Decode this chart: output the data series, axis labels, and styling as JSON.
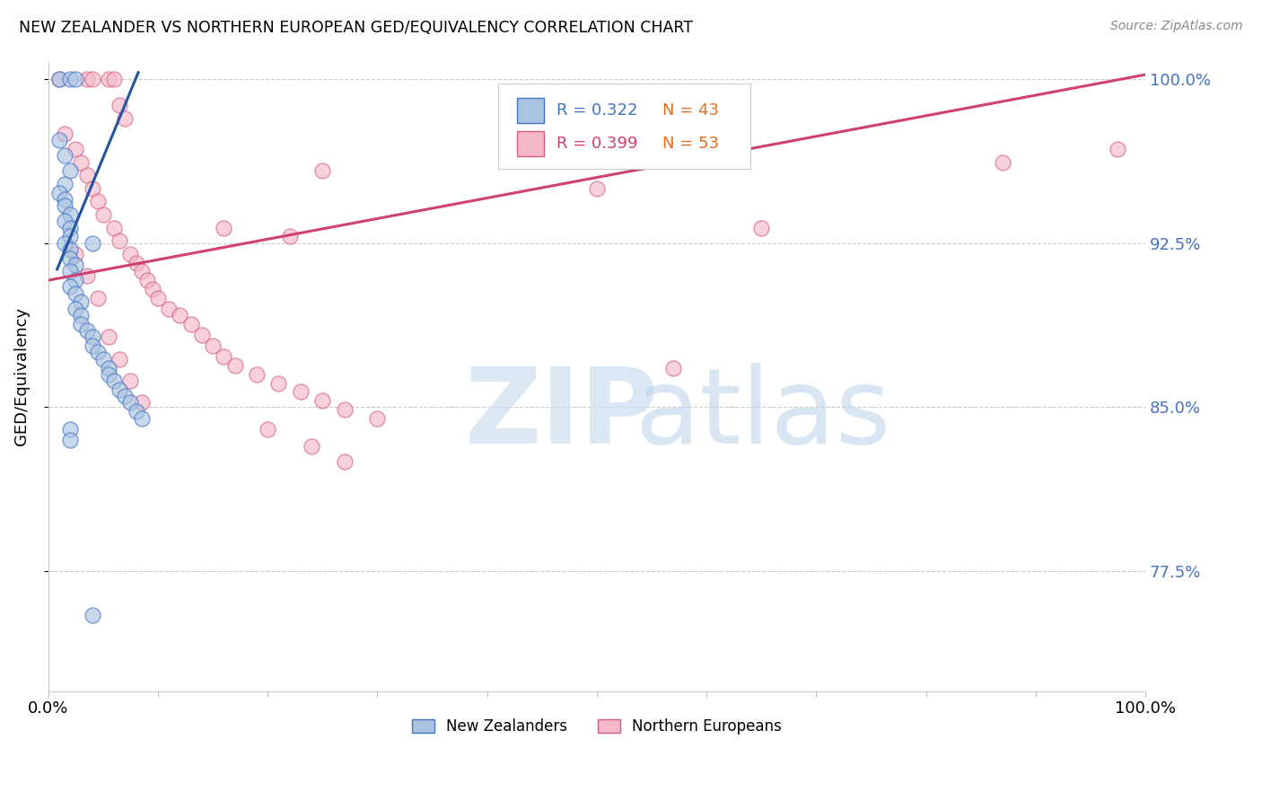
{
  "title": "NEW ZEALANDER VS NORTHERN EUROPEAN GED/EQUIVALENCY CORRELATION CHART",
  "source": "Source: ZipAtlas.com",
  "ylabel": "GED/Equivalency",
  "xmin": 0.0,
  "xmax": 1.0,
  "ymin": 0.72,
  "ymax": 1.008,
  "yticks": [
    0.775,
    0.85,
    0.925,
    1.0
  ],
  "ytick_labels": [
    "77.5%",
    "85.0%",
    "92.5%",
    "100.0%"
  ],
  "legend_blue_r": "R = 0.322",
  "legend_blue_n": "N = 43",
  "legend_pink_r": "R = 0.399",
  "legend_pink_n": "N = 53",
  "legend_label_blue": "New Zealanders",
  "legend_label_pink": "Northern Europeans",
  "blue_fill": "#aac4e0",
  "blue_edge": "#4472c4",
  "pink_fill": "#f4b8c8",
  "pink_edge": "#d46080",
  "blue_line_color": "#2155a0",
  "pink_line_color": "#d04070",
  "blue_scatter_x": [
    0.01,
    0.02,
    0.025,
    0.01,
    0.015,
    0.02,
    0.015,
    0.01,
    0.015,
    0.015,
    0.02,
    0.015,
    0.02,
    0.02,
    0.015,
    0.02,
    0.02,
    0.025,
    0.02,
    0.025,
    0.02,
    0.025,
    0.03,
    0.025,
    0.03,
    0.03,
    0.035,
    0.04,
    0.04,
    0.045,
    0.05,
    0.055,
    0.055,
    0.06,
    0.065,
    0.07,
    0.075,
    0.08,
    0.085,
    0.04,
    0.02,
    0.02,
    0.04
  ],
  "blue_scatter_y": [
    1.0,
    1.0,
    1.0,
    0.972,
    0.965,
    0.958,
    0.952,
    0.948,
    0.945,
    0.942,
    0.938,
    0.935,
    0.932,
    0.928,
    0.925,
    0.922,
    0.918,
    0.915,
    0.912,
    0.908,
    0.905,
    0.902,
    0.898,
    0.895,
    0.892,
    0.888,
    0.885,
    0.882,
    0.878,
    0.875,
    0.872,
    0.868,
    0.865,
    0.862,
    0.858,
    0.855,
    0.852,
    0.848,
    0.845,
    0.925,
    0.84,
    0.835,
    0.755
  ],
  "pink_scatter_x": [
    0.01,
    0.035,
    0.04,
    0.055,
    0.06,
    0.065,
    0.07,
    0.015,
    0.025,
    0.03,
    0.035,
    0.04,
    0.045,
    0.05,
    0.06,
    0.065,
    0.075,
    0.08,
    0.085,
    0.09,
    0.095,
    0.1,
    0.11,
    0.12,
    0.13,
    0.14,
    0.15,
    0.16,
    0.17,
    0.19,
    0.21,
    0.23,
    0.25,
    0.27,
    0.3,
    0.16,
    0.22,
    0.25,
    0.5,
    0.57,
    0.65,
    0.87,
    0.025,
    0.035,
    0.045,
    0.055,
    0.065,
    0.075,
    0.085,
    0.2,
    0.24,
    0.27,
    0.975
  ],
  "pink_scatter_y": [
    1.0,
    1.0,
    1.0,
    1.0,
    1.0,
    0.988,
    0.982,
    0.975,
    0.968,
    0.962,
    0.956,
    0.95,
    0.944,
    0.938,
    0.932,
    0.926,
    0.92,
    0.916,
    0.912,
    0.908,
    0.904,
    0.9,
    0.895,
    0.892,
    0.888,
    0.883,
    0.878,
    0.873,
    0.869,
    0.865,
    0.861,
    0.857,
    0.853,
    0.849,
    0.845,
    0.932,
    0.928,
    0.958,
    0.95,
    0.868,
    0.932,
    0.962,
    0.92,
    0.91,
    0.9,
    0.882,
    0.872,
    0.862,
    0.852,
    0.84,
    0.832,
    0.825,
    0.968
  ],
  "blue_trend_x": [
    0.008,
    0.082
  ],
  "blue_trend_y": [
    0.913,
    1.003
  ],
  "pink_trend_x": [
    0.0,
    1.0
  ],
  "pink_trend_y": [
    0.908,
    1.002
  ]
}
